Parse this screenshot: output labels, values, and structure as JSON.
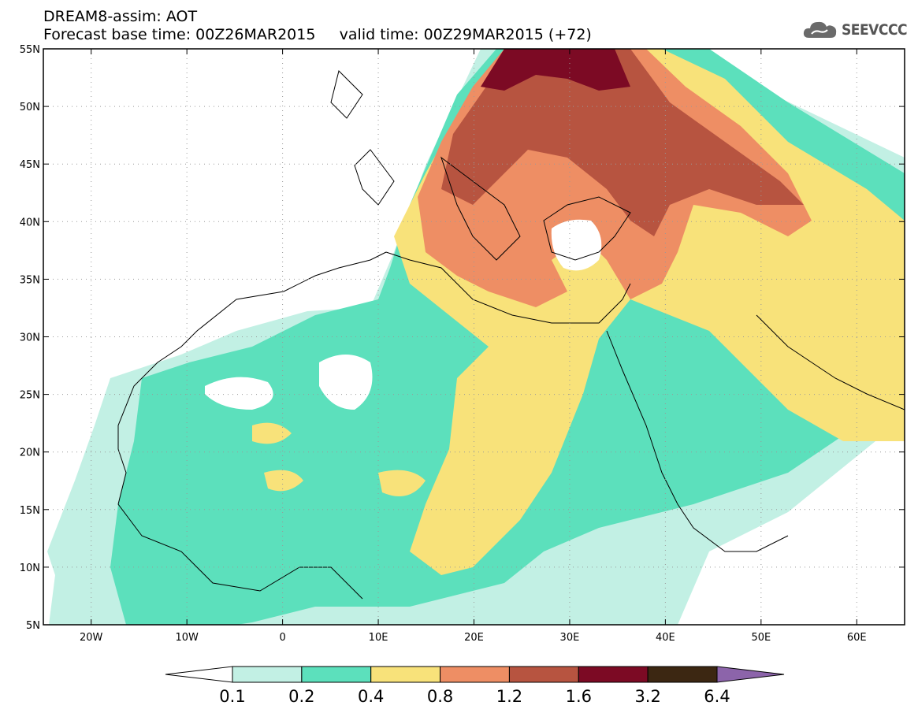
{
  "header": {
    "title": "DREAM8-assim: AOT",
    "base_time_label": "Forecast base time: 00Z26MAR2015",
    "valid_time_label": "valid time: 00Z29MAR2015 (+72)"
  },
  "logo": {
    "text": "SEEVCCC",
    "icon": "cloud-icon"
  },
  "map": {
    "lon_range": [
      -25,
      65
    ],
    "lat_range": [
      5,
      55
    ],
    "lon_ticks": [
      {
        "value": -20,
        "label": "20W"
      },
      {
        "value": -10,
        "label": "10W"
      },
      {
        "value": 0,
        "label": "0"
      },
      {
        "value": 10,
        "label": "10E"
      },
      {
        "value": 20,
        "label": "20E"
      },
      {
        "value": 30,
        "label": "30E"
      },
      {
        "value": 40,
        "label": "40E"
      },
      {
        "value": 50,
        "label": "50E"
      },
      {
        "value": 60,
        "label": "60E"
      }
    ],
    "lat_ticks": [
      {
        "value": 55,
        "label": "55N"
      },
      {
        "value": 50,
        "label": "50N"
      },
      {
        "value": 45,
        "label": "45N"
      },
      {
        "value": 40,
        "label": "40N"
      },
      {
        "value": 35,
        "label": "35N"
      },
      {
        "value": 30,
        "label": "30N"
      },
      {
        "value": 25,
        "label": "25N"
      },
      {
        "value": 20,
        "label": "20N"
      },
      {
        "value": 15,
        "label": "15N"
      },
      {
        "value": 10,
        "label": "10N"
      },
      {
        "value": 5,
        "label": "5N"
      }
    ],
    "grid": true
  },
  "colorbar": {
    "levels": [
      "0.1",
      "0.2",
      "0.4",
      "0.8",
      "1.2",
      "1.6",
      "3.2",
      "6.4"
    ],
    "colors": [
      "#ffffff",
      "#c2f0e4",
      "#5ce0bc",
      "#f8e27a",
      "#ee8e64",
      "#b75440",
      "#7c0a24",
      "#3c2712",
      "#8c64aa"
    ]
  }
}
